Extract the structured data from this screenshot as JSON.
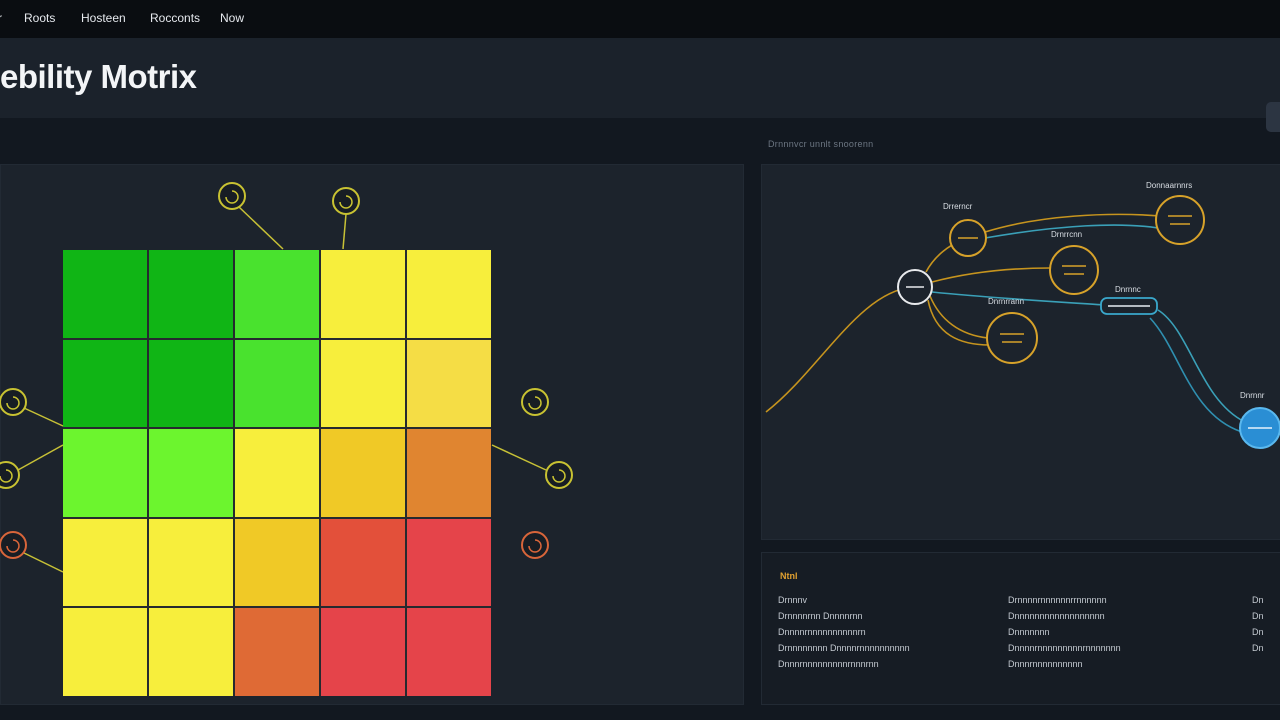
{
  "app": {
    "nav": [
      "r",
      "Roots",
      "Hosteen",
      "Rocconts",
      "Now"
    ],
    "title": "ebility Motrix"
  },
  "matrix": {
    "colors": {
      "dark_green": "#10b515",
      "green": "#49e22e",
      "light_green": "#6cf52e",
      "yellow": "#f7ee3c",
      "light_orange": "#f5dd45",
      "amber": "#f0c926",
      "orange": "#e08530",
      "red_orange": "#df6a35",
      "coral": "#e3503a",
      "red": "#e5444a"
    },
    "rows": [
      [
        "dark_green",
        "dark_green",
        "green",
        "yellow",
        "yellow"
      ],
      [
        "dark_green",
        "dark_green",
        "green",
        "yellow",
        "light_orange"
      ],
      [
        "light_green",
        "light_green",
        "yellow",
        "amber",
        "orange"
      ],
      [
        "yellow",
        "yellow",
        "amber",
        "coral",
        "red"
      ],
      [
        "yellow",
        "yellow",
        "red_orange",
        "red",
        "red"
      ]
    ]
  },
  "network": {
    "section_label": "Drnnnvcr unnlt snoorenn",
    "nodes": [
      {
        "id": "root",
        "label": ""
      },
      {
        "id": "n1",
        "label": "Drrerncr"
      },
      {
        "id": "n2",
        "label": "Donnaarnnrs"
      },
      {
        "id": "n3",
        "label": "Drnrrcnn"
      },
      {
        "id": "n4",
        "label": "Dnrnrrann"
      },
      {
        "id": "n5",
        "label": "Dnrnnc"
      },
      {
        "id": "n6",
        "label": "Dnrnnr"
      }
    ]
  },
  "details": {
    "heading": "Ntnl",
    "columns": [
      [
        "Drnnnv",
        "Drnnnnrnn Dnnnnrnn",
        "Dnnnnrnnnnnnnnnnrn",
        "Drnnnnnnnn Dnnnnrnnnnnnnnnn",
        "Dnnnrnnnnnnnnnrnnnrnn"
      ],
      [
        "Drnnnnrnnnnnnrrnnnnnn",
        "Dnnnnnnnnnnnnnnnnnn",
        "Dnnnnnnn",
        "Dnnnnrnnnnnnnnnrnnnnnnn",
        "Dnnnrnnnnnnnnnn"
      ],
      [
        "Dn",
        "Dn",
        "Dn",
        "Dn"
      ]
    ]
  }
}
